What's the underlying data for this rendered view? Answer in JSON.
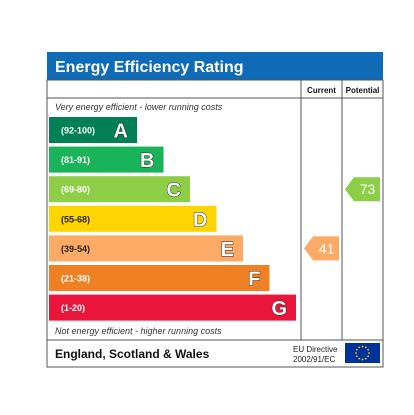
{
  "chart_data": {
    "type": "bar",
    "title": "Energy Efficiency Rating",
    "columns": [
      "Current",
      "Potential"
    ],
    "top_note": "Very energy efficient - lower running costs",
    "bottom_note": "Not energy efficient - higher running costs",
    "bands": [
      {
        "letter": "A",
        "range": "(92-100)",
        "min": 92,
        "max": 100,
        "color": "#008054"
      },
      {
        "letter": "B",
        "range": "(81-91)",
        "min": 81,
        "max": 91,
        "color": "#19b459"
      },
      {
        "letter": "C",
        "range": "(69-80)",
        "min": 69,
        "max": 80,
        "color": "#8dce46"
      },
      {
        "letter": "D",
        "range": "(55-68)",
        "min": 55,
        "max": 68,
        "color": "#ffd500"
      },
      {
        "letter": "E",
        "range": "(39-54)",
        "min": 39,
        "max": 54,
        "color": "#fcaa65"
      },
      {
        "letter": "F",
        "range": "(21-38)",
        "min": 21,
        "max": 38,
        "color": "#ef8023"
      },
      {
        "letter": "G",
        "range": "(1-20)",
        "min": 1,
        "max": 20,
        "color": "#e9153b"
      }
    ],
    "current": {
      "value": 41,
      "band": "E"
    },
    "potential": {
      "value": 73,
      "band": "C"
    },
    "footer": {
      "region": "England, Scotland & Wales",
      "directive_line1": "EU Directive",
      "directive_line2": "2002/91/EC"
    },
    "colors": {
      "header": "#0f6bb5",
      "border": "#555555",
      "eu_flag": "#003399",
      "eu_stars": "#ffcc00"
    }
  }
}
